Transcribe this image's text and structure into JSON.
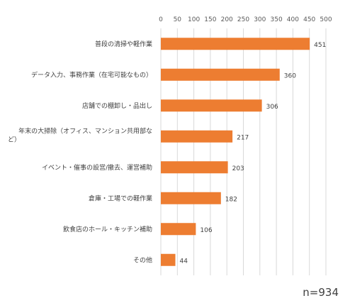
{
  "chart_data": {
    "type": "bar",
    "orientation": "horizontal",
    "categories": [
      [
        "普段の清掃や軽作業"
      ],
      [
        "データ入力、事務作業（在宅可能なもの）"
      ],
      [
        "店舗での棚卸し・品出し"
      ],
      [
        "年末の大掃除（オフィス、マンション共用部な",
        "ど）"
      ],
      [
        "イベント・催事の設営/撤去、運営補助"
      ],
      [
        "倉庫・工場での軽作業"
      ],
      [
        "飲食店のホール・キッチン補助"
      ],
      [
        "その他"
      ]
    ],
    "values": [
      451,
      360,
      306,
      217,
      203,
      182,
      106,
      44
    ],
    "xlim": [
      0,
      500
    ],
    "ticks": [
      0,
      50,
      100,
      150,
      200,
      250,
      300,
      350,
      400,
      450,
      500
    ],
    "axis_position": "top",
    "grid": true,
    "bar_color": "#ED7D31",
    "gridline_color": "#D9D9D9"
  },
  "note": "n=934"
}
